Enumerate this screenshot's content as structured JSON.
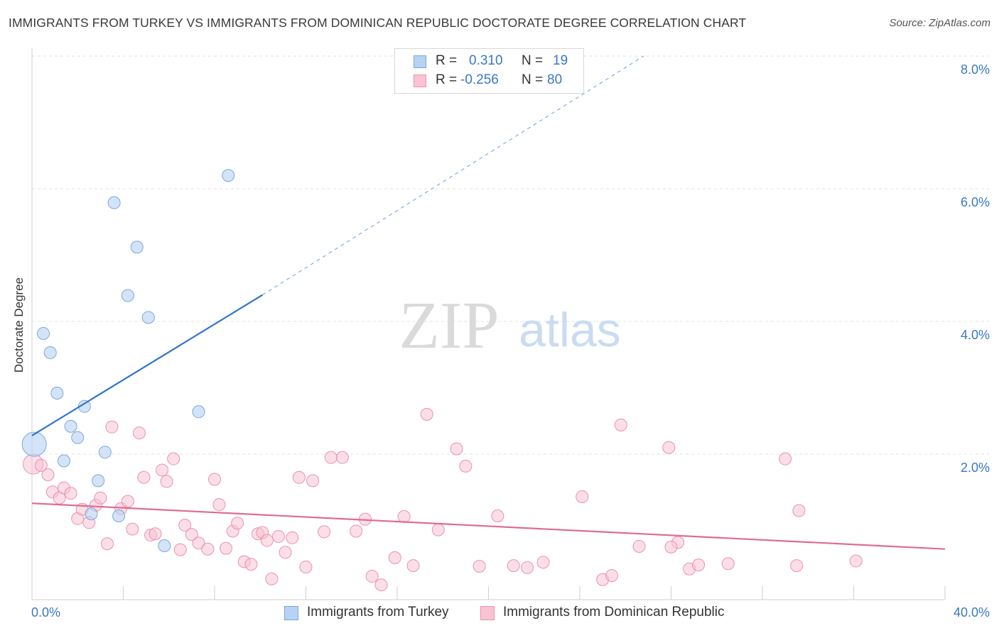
{
  "header": {
    "title": "IMMIGRANTS FROM TURKEY VS IMMIGRANTS FROM DOMINICAN REPUBLIC DOCTORATE DEGREE CORRELATION CHART",
    "source": "Source: ZipAtlas.com"
  },
  "watermark": {
    "zip": "ZIP",
    "atlas": "atlas"
  },
  "colors": {
    "turkey_fill": "#b7d2f3",
    "turkey_stroke": "#7ba6dc",
    "turkey_line": "#2f74c9",
    "dr_fill": "#f8c3d3",
    "dr_stroke": "#eb92ae",
    "dr_line": "#e06a94",
    "value_blue": "#3a78c4",
    "grid": "#e3e3e3"
  },
  "legend": {
    "rows": [
      {
        "r_label": "R =",
        "r_value": "0.310",
        "n_label": "N =",
        "n_value": "19"
      },
      {
        "r_label": "R =",
        "r_value": "-0.256",
        "n_label": "N =",
        "n_value": "80"
      }
    ]
  },
  "bottom_legend": {
    "turkey": "Immigrants from Turkey",
    "dr": "Immigrants from Dominican Republic"
  },
  "chart_data": {
    "type": "scatter",
    "title": "IMMIGRANTS FROM TURKEY VS IMMIGRANTS FROM DOMINICAN REPUBLIC DOCTORATE DEGREE CORRELATION CHART",
    "xlabel": "",
    "ylabel": "Doctorate Degree",
    "xlim": [
      0,
      40
    ],
    "ylim": [
      0,
      8.0
    ],
    "x_tick_labels": [
      "0.0%",
      "40.0%"
    ],
    "y_ticks": [
      2.0,
      4.0,
      6.0,
      8.0
    ],
    "y_tick_labels": [
      "2.0%",
      "4.0%",
      "6.0%",
      "8.0%"
    ],
    "grid": true,
    "legend_position": "top-center",
    "series": [
      {
        "name": "Immigrants from Turkey",
        "r": 0.31,
        "n": 19,
        "points": [
          [
            0.1,
            2.15
          ],
          [
            0.5,
            3.82
          ],
          [
            0.8,
            3.53
          ],
          [
            1.1,
            2.92
          ],
          [
            1.4,
            1.9
          ],
          [
            1.7,
            2.42
          ],
          [
            2.0,
            2.25
          ],
          [
            2.3,
            2.72
          ],
          [
            2.6,
            1.1
          ],
          [
            2.9,
            1.6
          ],
          [
            3.2,
            2.03
          ],
          [
            3.6,
            5.79
          ],
          [
            3.8,
            1.07
          ],
          [
            4.2,
            4.39
          ],
          [
            4.6,
            5.12
          ],
          [
            5.1,
            4.06
          ],
          [
            5.8,
            0.62
          ],
          [
            7.3,
            2.64
          ],
          [
            8.6,
            6.2
          ]
        ],
        "trend": {
          "x0": 0,
          "y0": 2.28,
          "x1": 10.1,
          "y1": 4.4,
          "dashed_to_x": 26.8,
          "dashed_to_y": 8.0
        }
      },
      {
        "name": "Immigrants from Dominican Republic",
        "r": -0.256,
        "n": 80,
        "points": [
          [
            0.05,
            1.85
          ],
          [
            0.4,
            1.83
          ],
          [
            0.7,
            1.69
          ],
          [
            0.9,
            1.43
          ],
          [
            1.2,
            1.34
          ],
          [
            1.4,
            1.49
          ],
          [
            1.7,
            1.41
          ],
          [
            2.0,
            1.03
          ],
          [
            2.2,
            1.17
          ],
          [
            2.5,
            0.97
          ],
          [
            2.8,
            1.23
          ],
          [
            3.0,
            1.34
          ],
          [
            3.3,
            0.65
          ],
          [
            3.5,
            2.41
          ],
          [
            3.9,
            1.18
          ],
          [
            4.2,
            1.29
          ],
          [
            4.4,
            0.87
          ],
          [
            4.7,
            2.32
          ],
          [
            4.9,
            1.65
          ],
          [
            5.2,
            0.78
          ],
          [
            5.4,
            0.8
          ],
          [
            5.7,
            1.76
          ],
          [
            5.9,
            1.59
          ],
          [
            6.2,
            1.93
          ],
          [
            6.5,
            0.56
          ],
          [
            6.7,
            0.93
          ],
          [
            7.0,
            0.79
          ],
          [
            7.3,
            0.66
          ],
          [
            7.7,
            0.57
          ],
          [
            8.0,
            1.62
          ],
          [
            8.2,
            1.24
          ],
          [
            8.5,
            0.58
          ],
          [
            8.8,
            0.84
          ],
          [
            9.0,
            0.96
          ],
          [
            9.3,
            0.38
          ],
          [
            9.6,
            0.34
          ],
          [
            9.9,
            0.8
          ],
          [
            10.1,
            0.82
          ],
          [
            10.3,
            0.7
          ],
          [
            10.5,
            0.12
          ],
          [
            10.8,
            0.76
          ],
          [
            11.1,
            0.52
          ],
          [
            11.4,
            0.74
          ],
          [
            11.7,
            1.65
          ],
          [
            12.0,
            0.3
          ],
          [
            12.3,
            1.6
          ],
          [
            12.8,
            0.83
          ],
          [
            13.1,
            1.95
          ],
          [
            13.6,
            1.95
          ],
          [
            14.2,
            0.84
          ],
          [
            14.6,
            1.02
          ],
          [
            14.9,
            0.16
          ],
          [
            15.9,
            0.44
          ],
          [
            16.3,
            1.06
          ],
          [
            16.7,
            0.32
          ],
          [
            17.3,
            2.6
          ],
          [
            17.8,
            0.86
          ],
          [
            18.6,
            2.08
          ],
          [
            19.0,
            1.82
          ],
          [
            19.6,
            0.31
          ],
          [
            20.4,
            1.07
          ],
          [
            21.1,
            0.32
          ],
          [
            21.7,
            0.29
          ],
          [
            22.4,
            0.37
          ],
          [
            24.1,
            1.36
          ],
          [
            25.0,
            0.11
          ],
          [
            25.4,
            0.17
          ],
          [
            25.8,
            2.44
          ],
          [
            26.6,
            0.61
          ],
          [
            27.9,
            2.1
          ],
          [
            28.3,
            0.67
          ],
          [
            28.8,
            0.27
          ],
          [
            29.2,
            0.33
          ],
          [
            30.5,
            0.35
          ],
          [
            33.0,
            1.93
          ],
          [
            33.5,
            0.32
          ],
          [
            33.6,
            1.15
          ],
          [
            36.1,
            0.39
          ],
          [
            15.3,
            0.03
          ],
          [
            28.0,
            0.6
          ]
        ],
        "trend": {
          "x0": 0,
          "y0": 1.26,
          "x1": 40,
          "y1": 0.57
        }
      }
    ]
  }
}
